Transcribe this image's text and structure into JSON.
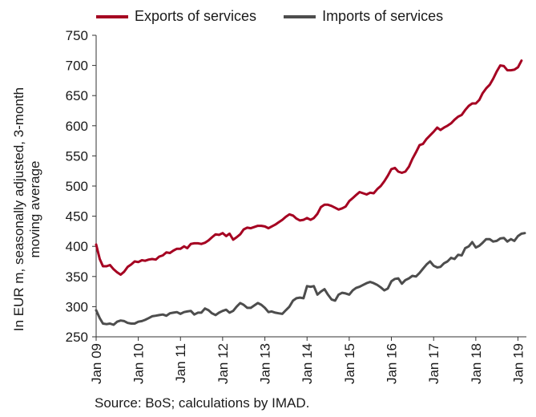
{
  "chart_data": {
    "type": "line",
    "ylabel": "In EUR m, seasonally adjusted, 3-month moving average",
    "ylim": [
      250,
      750
    ],
    "yticks": [
      250,
      300,
      350,
      400,
      450,
      500,
      550,
      600,
      650,
      700,
      750
    ],
    "xticks": [
      "Jan 09",
      "Jan 10",
      "Jan 11",
      "Jan 12",
      "Jan 13",
      "Jan 14",
      "Jan 15",
      "Jan 16",
      "Jan 17",
      "Jan 18",
      "Jan 19"
    ],
    "legend_position": "top",
    "grid": false,
    "series": [
      {
        "name": "Exports of services",
        "color": "#a50021",
        "points": [
          [
            "2009-01",
            403
          ],
          [
            "2009-02",
            379
          ],
          [
            "2009-03",
            367
          ],
          [
            "2009-04",
            367
          ],
          [
            "2009-05",
            369
          ],
          [
            "2009-06",
            362
          ],
          [
            "2009-07",
            357
          ],
          [
            "2009-08",
            353
          ],
          [
            "2009-09",
            358
          ],
          [
            "2009-10",
            366
          ],
          [
            "2009-11",
            370
          ],
          [
            "2009-12",
            375
          ],
          [
            "2010-01",
            374
          ],
          [
            "2010-02",
            377
          ],
          [
            "2010-03",
            376
          ],
          [
            "2010-04",
            378
          ],
          [
            "2010-05",
            379
          ],
          [
            "2010-06",
            378
          ],
          [
            "2010-07",
            383
          ],
          [
            "2010-08",
            385
          ],
          [
            "2010-09",
            390
          ],
          [
            "2010-10",
            389
          ],
          [
            "2010-11",
            393
          ],
          [
            "2010-12",
            396
          ],
          [
            "2011-01",
            396
          ],
          [
            "2011-02",
            400
          ],
          [
            "2011-03",
            397
          ],
          [
            "2011-04",
            404
          ],
          [
            "2011-05",
            405
          ],
          [
            "2011-06",
            405
          ],
          [
            "2011-07",
            404
          ],
          [
            "2011-08",
            406
          ],
          [
            "2011-09",
            410
          ],
          [
            "2011-10",
            415
          ],
          [
            "2011-11",
            420
          ],
          [
            "2011-12",
            419
          ],
          [
            "2012-01",
            422
          ],
          [
            "2012-02",
            417
          ],
          [
            "2012-03",
            421
          ],
          [
            "2012-04",
            411
          ],
          [
            "2012-05",
            415
          ],
          [
            "2012-06",
            420
          ],
          [
            "2012-07",
            428
          ],
          [
            "2012-08",
            431
          ],
          [
            "2012-09",
            430
          ],
          [
            "2012-10",
            432
          ],
          [
            "2012-11",
            434
          ],
          [
            "2012-12",
            434
          ],
          [
            "2013-01",
            433
          ],
          [
            "2013-02",
            430
          ],
          [
            "2013-03",
            433
          ],
          [
            "2013-04",
            436
          ],
          [
            "2013-05",
            440
          ],
          [
            "2013-06",
            444
          ],
          [
            "2013-07",
            449
          ],
          [
            "2013-08",
            453
          ],
          [
            "2013-09",
            451
          ],
          [
            "2013-10",
            446
          ],
          [
            "2013-11",
            443
          ],
          [
            "2013-12",
            444
          ],
          [
            "2014-01",
            447
          ],
          [
            "2014-02",
            444
          ],
          [
            "2014-03",
            447
          ],
          [
            "2014-04",
            454
          ],
          [
            "2014-05",
            465
          ],
          [
            "2014-06",
            469
          ],
          [
            "2014-07",
            469
          ],
          [
            "2014-08",
            467
          ],
          [
            "2014-09",
            464
          ],
          [
            "2014-10",
            461
          ],
          [
            "2014-11",
            463
          ],
          [
            "2014-12",
            466
          ],
          [
            "2015-01",
            475
          ],
          [
            "2015-02",
            480
          ],
          [
            "2015-03",
            485
          ],
          [
            "2015-04",
            490
          ],
          [
            "2015-05",
            488
          ],
          [
            "2015-06",
            486
          ],
          [
            "2015-07",
            489
          ],
          [
            "2015-08",
            488
          ],
          [
            "2015-09",
            495
          ],
          [
            "2015-10",
            500
          ],
          [
            "2015-11",
            508
          ],
          [
            "2015-12",
            517
          ],
          [
            "2016-01",
            528
          ],
          [
            "2016-02",
            530
          ],
          [
            "2016-03",
            524
          ],
          [
            "2016-04",
            522
          ],
          [
            "2016-05",
            524
          ],
          [
            "2016-06",
            532
          ],
          [
            "2016-07",
            545
          ],
          [
            "2016-08",
            556
          ],
          [
            "2016-09",
            568
          ],
          [
            "2016-10",
            570
          ],
          [
            "2016-11",
            578
          ],
          [
            "2016-12",
            584
          ],
          [
            "2017-01",
            590
          ],
          [
            "2017-02",
            597
          ],
          [
            "2017-03",
            593
          ],
          [
            "2017-04",
            597
          ],
          [
            "2017-05",
            600
          ],
          [
            "2017-06",
            604
          ],
          [
            "2017-07",
            610
          ],
          [
            "2017-08",
            615
          ],
          [
            "2017-09",
            618
          ],
          [
            "2017-10",
            626
          ],
          [
            "2017-11",
            633
          ],
          [
            "2017-12",
            637
          ],
          [
            "2018-01",
            637
          ],
          [
            "2018-02",
            643
          ],
          [
            "2018-03",
            654
          ],
          [
            "2018-04",
            662
          ],
          [
            "2018-05",
            668
          ],
          [
            "2018-06",
            678
          ],
          [
            "2018-07",
            690
          ],
          [
            "2018-08",
            700
          ],
          [
            "2018-09",
            699
          ],
          [
            "2018-10",
            692
          ],
          [
            "2018-11",
            692
          ],
          [
            "2018-12",
            693
          ],
          [
            "2019-01",
            697
          ],
          [
            "2019-02",
            708
          ]
        ]
      },
      {
        "name": "Imports of services",
        "color": "#4d4d4d",
        "points": [
          [
            "2009-01",
            294
          ],
          [
            "2009-02",
            281
          ],
          [
            "2009-03",
            272
          ],
          [
            "2009-04",
            271
          ],
          [
            "2009-05",
            272
          ],
          [
            "2009-06",
            270
          ],
          [
            "2009-07",
            275
          ],
          [
            "2009-08",
            277
          ],
          [
            "2009-09",
            276
          ],
          [
            "2009-10",
            273
          ],
          [
            "2009-11",
            272
          ],
          [
            "2009-12",
            272
          ],
          [
            "2010-01",
            275
          ],
          [
            "2010-02",
            276
          ],
          [
            "2010-03",
            278
          ],
          [
            "2010-04",
            281
          ],
          [
            "2010-05",
            284
          ],
          [
            "2010-06",
            285
          ],
          [
            "2010-07",
            286
          ],
          [
            "2010-08",
            287
          ],
          [
            "2010-09",
            285
          ],
          [
            "2010-10",
            289
          ],
          [
            "2010-11",
            290
          ],
          [
            "2010-12",
            291
          ],
          [
            "2011-01",
            288
          ],
          [
            "2011-02",
            291
          ],
          [
            "2011-03",
            292
          ],
          [
            "2011-04",
            293
          ],
          [
            "2011-05",
            287
          ],
          [
            "2011-06",
            290
          ],
          [
            "2011-07",
            290
          ],
          [
            "2011-08",
            297
          ],
          [
            "2011-09",
            294
          ],
          [
            "2011-10",
            289
          ],
          [
            "2011-11",
            286
          ],
          [
            "2011-12",
            290
          ],
          [
            "2012-01",
            293
          ],
          [
            "2012-02",
            295
          ],
          [
            "2012-03",
            290
          ],
          [
            "2012-04",
            293
          ],
          [
            "2012-05",
            300
          ],
          [
            "2012-06",
            306
          ],
          [
            "2012-07",
            303
          ],
          [
            "2012-08",
            298
          ],
          [
            "2012-09",
            298
          ],
          [
            "2012-10",
            302
          ],
          [
            "2012-11",
            306
          ],
          [
            "2012-12",
            303
          ],
          [
            "2013-01",
            298
          ],
          [
            "2013-02",
            291
          ],
          [
            "2013-03",
            292
          ],
          [
            "2013-04",
            290
          ],
          [
            "2013-05",
            289
          ],
          [
            "2013-06",
            288
          ],
          [
            "2013-07",
            294
          ],
          [
            "2013-08",
            300
          ],
          [
            "2013-09",
            310
          ],
          [
            "2013-10",
            314
          ],
          [
            "2013-11",
            315
          ],
          [
            "2013-12",
            314
          ],
          [
            "2014-01",
            334
          ],
          [
            "2014-02",
            333
          ],
          [
            "2014-03",
            334
          ],
          [
            "2014-04",
            320
          ],
          [
            "2014-05",
            325
          ],
          [
            "2014-06",
            329
          ],
          [
            "2014-07",
            320
          ],
          [
            "2014-08",
            312
          ],
          [
            "2014-09",
            310
          ],
          [
            "2014-10",
            320
          ],
          [
            "2014-11",
            323
          ],
          [
            "2014-12",
            322
          ],
          [
            "2015-01",
            320
          ],
          [
            "2015-02",
            327
          ],
          [
            "2015-03",
            331
          ],
          [
            "2015-04",
            333
          ],
          [
            "2015-05",
            336
          ],
          [
            "2015-06",
            339
          ],
          [
            "2015-07",
            341
          ],
          [
            "2015-08",
            339
          ],
          [
            "2015-09",
            336
          ],
          [
            "2015-10",
            332
          ],
          [
            "2015-11",
            327
          ],
          [
            "2015-12",
            330
          ],
          [
            "2016-01",
            342
          ],
          [
            "2016-02",
            346
          ],
          [
            "2016-03",
            347
          ],
          [
            "2016-04",
            338
          ],
          [
            "2016-05",
            344
          ],
          [
            "2016-06",
            347
          ],
          [
            "2016-07",
            351
          ],
          [
            "2016-08",
            350
          ],
          [
            "2016-09",
            356
          ],
          [
            "2016-10",
            363
          ],
          [
            "2016-11",
            370
          ],
          [
            "2016-12",
            375
          ],
          [
            "2017-01",
            368
          ],
          [
            "2017-02",
            365
          ],
          [
            "2017-03",
            366
          ],
          [
            "2017-04",
            372
          ],
          [
            "2017-05",
            375
          ],
          [
            "2017-06",
            381
          ],
          [
            "2017-07",
            379
          ],
          [
            "2017-08",
            386
          ],
          [
            "2017-09",
            385
          ],
          [
            "2017-10",
            397
          ],
          [
            "2017-11",
            400
          ],
          [
            "2017-12",
            407
          ],
          [
            "2018-01",
            398
          ],
          [
            "2018-02",
            401
          ],
          [
            "2018-03",
            406
          ],
          [
            "2018-04",
            412
          ],
          [
            "2018-05",
            412
          ],
          [
            "2018-06",
            408
          ],
          [
            "2018-07",
            409
          ],
          [
            "2018-08",
            413
          ],
          [
            "2018-09",
            414
          ],
          [
            "2018-10",
            408
          ],
          [
            "2018-11",
            412
          ],
          [
            "2018-12",
            409
          ],
          [
            "2019-01",
            417
          ],
          [
            "2019-02",
            421
          ],
          [
            "2019-03",
            422
          ]
        ]
      }
    ]
  },
  "source": "Source: BoS; calculations by IMAD."
}
